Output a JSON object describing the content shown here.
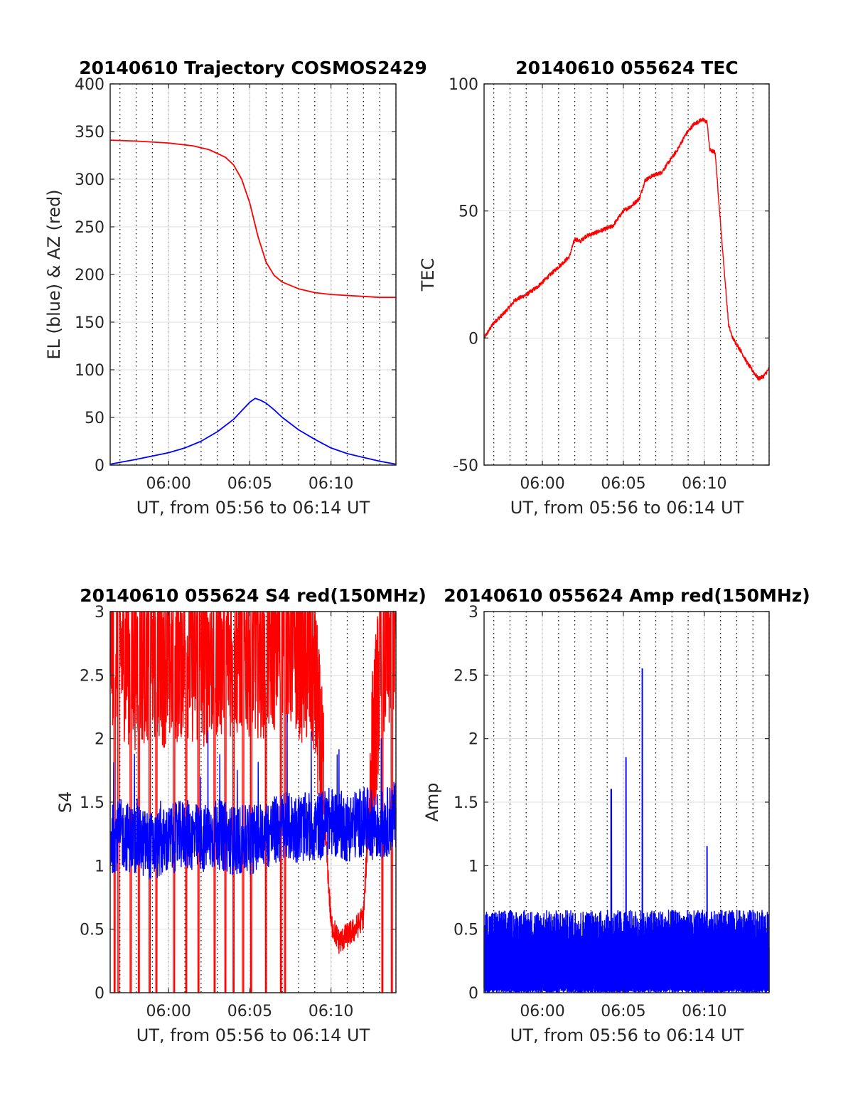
{
  "figure": {
    "background": "#ffffff"
  },
  "chart_data": [
    {
      "type": "line",
      "title": "20140610 Trajectory COSMOS2429",
      "xlabel": "UT, from 05:56 to 06:14 UT",
      "ylabel": "EL (blue) & AZ (red)",
      "x_unit": "minutes",
      "xlim": [
        "05:56:24",
        "06:14:00"
      ],
      "x_ticks": [
        "06:00",
        "06:05",
        "06:10"
      ],
      "ylim": [
        0,
        400
      ],
      "y_ticks": [
        "0",
        "50",
        "100",
        "150",
        "200",
        "250",
        "300",
        "350",
        "400"
      ],
      "grid": true,
      "minor_x_grid": "dotted, every minute",
      "series": [
        {
          "color": "#ff0000",
          "x": [
            "05:56:24",
            "05:58:00",
            "06:00:00",
            "06:01:30",
            "06:02:30",
            "06:03:30",
            "06:04:00",
            "06:04:30",
            "06:05:00",
            "06:05:30",
            "06:06:00",
            "06:06:30",
            "06:07:00",
            "06:08:00",
            "06:09:00",
            "06:10:00",
            "06:11:00",
            "06:12:00",
            "06:13:00",
            "06:14:00"
          ],
          "values": [
            341,
            340,
            338,
            335,
            331,
            323,
            315,
            300,
            275,
            240,
            213,
            199,
            192,
            185,
            181,
            179,
            178,
            177,
            176,
            176
          ]
        },
        {
          "color": "#0000ff",
          "x": [
            "05:56:24",
            "05:58:00",
            "06:00:00",
            "06:01:00",
            "06:02:00",
            "06:03:00",
            "06:04:00",
            "06:04:30",
            "06:05:00",
            "06:05:20",
            "06:05:40",
            "06:06:00",
            "06:06:30",
            "06:07:00",
            "06:08:00",
            "06:09:00",
            "06:10:00",
            "06:11:00",
            "06:12:00",
            "06:13:00",
            "06:14:00"
          ],
          "values": [
            1,
            6,
            13,
            18,
            25,
            35,
            48,
            57,
            66,
            70,
            68,
            65,
            58,
            50,
            37,
            27,
            18,
            12,
            8,
            4,
            1
          ]
        }
      ]
    },
    {
      "type": "line",
      "title": "20140610 055624 TEC",
      "xlabel": "UT, from 05:56 to 06:14 UT",
      "ylabel": "TEC",
      "x_unit": "minutes",
      "xlim": [
        "05:56:24",
        "06:14:00"
      ],
      "x_ticks": [
        "06:00",
        "06:05",
        "06:10"
      ],
      "ylim": [
        -50,
        100
      ],
      "y_ticks": [
        "-50",
        "0",
        "50",
        "100"
      ],
      "grid": true,
      "minor_x_grid": "dotted, every minute",
      "series": [
        {
          "color": "#ff0000",
          "x": [
            "05:56:24",
            "05:57:00",
            "05:57:40",
            "05:58:20",
            "05:59:00",
            "05:59:40",
            "06:00:20",
            "06:01:00",
            "06:01:20",
            "06:01:40",
            "06:02:00",
            "06:02:20",
            "06:02:40",
            "06:03:30",
            "06:04:20",
            "06:04:40",
            "06:05:00",
            "06:05:30",
            "06:06:00",
            "06:06:20",
            "06:06:50",
            "06:07:20",
            "06:07:40",
            "06:08:20",
            "06:08:50",
            "06:09:20",
            "06:09:50",
            "06:10:10",
            "06:10:20",
            "06:10:40",
            "06:11:00",
            "06:11:30",
            "06:11:45",
            "06:12:15",
            "06:12:40",
            "06:13:00",
            "06:13:20",
            "06:13:40",
            "06:14:00"
          ],
          "values": [
            0,
            6,
            10,
            15,
            17,
            20,
            24,
            28,
            30,
            32,
            39,
            38,
            40,
            42,
            44,
            47,
            50,
            52,
            55,
            62,
            64,
            65,
            68,
            74,
            80,
            84,
            86,
            85,
            74,
            73,
            45,
            5,
            0,
            -5,
            -10,
            -13,
            -16,
            -15,
            -12
          ]
        }
      ]
    },
    {
      "type": "line",
      "title": "20140610 055624 S4 red(150MHz)",
      "xlabel": "UT, from 05:56 to 06:14 UT",
      "ylabel": "S4",
      "x_unit": "minutes",
      "xlim": [
        "05:56:24",
        "06:14:00"
      ],
      "x_ticks": [
        "06:00",
        "06:05",
        "06:10"
      ],
      "ylim": [
        0,
        3
      ],
      "y_ticks": [
        "0",
        "0.5",
        "1",
        "1.5",
        "2",
        "2.5",
        "3"
      ],
      "grid": true,
      "minor_x_grid": "dotted, every minute",
      "series": [
        {
          "color": "#ff0000",
          "x": [
            "05:56:24",
            "05:57:00",
            "05:58:00",
            "05:59:00",
            "06:00:00",
            "06:01:00",
            "06:02:00",
            "06:03:00",
            "06:04:00",
            "06:05:00",
            "06:06:00",
            "06:07:00",
            "06:08:00",
            "06:09:00",
            "06:09:30",
            "06:10:00",
            "06:10:30",
            "06:11:00",
            "06:11:30",
            "06:12:00",
            "06:12:30",
            "06:13:00",
            "06:13:30",
            "06:14:00"
          ],
          "values": [
            2.8,
            2.7,
            2.6,
            2.7,
            2.6,
            2.7,
            2.6,
            2.7,
            2.7,
            2.7,
            2.7,
            2.8,
            2.7,
            2.5,
            1.6,
            0.55,
            0.4,
            0.45,
            0.5,
            0.6,
            1.8,
            2.5,
            2.7,
            2.8
          ],
          "dropouts": [
            "05:56:40",
            "05:56:55",
            "05:57:40",
            "05:58:10",
            "05:58:50",
            "05:59:15",
            "06:00:20",
            "06:01:05",
            "06:01:50",
            "06:02:50",
            "06:03:30",
            "06:04:00",
            "06:04:35",
            "06:05:05",
            "06:06:00",
            "06:06:55",
            "06:07:10",
            "06:13:10",
            "06:13:45"
          ]
        },
        {
          "color": "#0000ff",
          "x": [
            "05:56:24",
            "05:57:00",
            "05:58:00",
            "05:59:00",
            "06:00:00",
            "06:01:00",
            "06:02:00",
            "06:03:00",
            "06:04:00",
            "06:05:00",
            "06:06:00",
            "06:07:00",
            "06:08:00",
            "06:09:00",
            "06:10:00",
            "06:11:00",
            "06:12:00",
            "06:13:00",
            "06:14:00"
          ],
          "values": [
            1.2,
            1.25,
            1.2,
            1.15,
            1.2,
            1.25,
            1.2,
            1.25,
            1.2,
            1.2,
            1.25,
            1.3,
            1.3,
            1.3,
            1.35,
            1.3,
            1.35,
            1.3,
            1.4
          ]
        }
      ]
    },
    {
      "type": "line",
      "title": "20140610 055624 Amp red(150MHz)",
      "xlabel": "UT, from 05:56 to 06:14 UT",
      "ylabel": "Amp",
      "x_unit": "minutes",
      "xlim": [
        "05:56:24",
        "06:14:00"
      ],
      "x_ticks": [
        "06:00",
        "06:05",
        "06:10"
      ],
      "ylim": [
        0,
        3
      ],
      "y_ticks": [
        "0",
        "0.5",
        "1",
        "1.5",
        "2",
        "2.5",
        "3"
      ],
      "grid": true,
      "minor_x_grid": "dotted, every minute",
      "series": [
        {
          "color": "#0000ff",
          "x": [
            "05:56:24",
            "05:57:00",
            "05:58:00",
            "05:59:00",
            "06:00:00",
            "06:01:00",
            "06:02:00",
            "06:03:00",
            "06:04:00",
            "06:04:15",
            "06:05:00",
            "06:05:10",
            "06:06:00",
            "06:06:10",
            "06:07:00",
            "06:08:00",
            "06:09:00",
            "06:10:00",
            "06:10:10",
            "06:11:00",
            "06:12:00",
            "06:13:00",
            "06:14:00"
          ],
          "values": [
            0.55,
            0.6,
            0.65,
            0.65,
            0.6,
            0.65,
            0.65,
            0.55,
            0.6,
            1.6,
            0.6,
            1.85,
            0.65,
            2.55,
            0.6,
            0.6,
            0.6,
            0.75,
            1.15,
            0.6,
            0.6,
            0.6,
            0.65
          ]
        }
      ]
    }
  ]
}
